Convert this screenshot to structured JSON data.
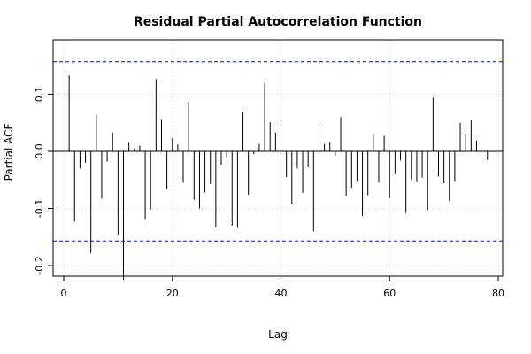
{
  "chart_data": {
    "type": "bar",
    "style": "vertical lines (spikes) from zero",
    "title": "Residual Partial Autocorrelation Function",
    "xlabel": "Lag",
    "ylabel": "Partial ACF",
    "xlim": [
      0,
      80
    ],
    "ylim": [
      -0.24,
      0.17
    ],
    "xticks": [
      0,
      20,
      40,
      60,
      80
    ],
    "xtick_labels": [
      "0",
      "20",
      "40",
      "60",
      "80"
    ],
    "yticks": [
      -0.2,
      -0.1,
      0.0,
      0.1
    ],
    "ytick_labels": [
      "-0.2",
      "-0.1",
      "0.0",
      "0.1"
    ],
    "confidence_bounds": [
      0.157,
      -0.157
    ],
    "confidence_color": "#0000ff",
    "grid": true,
    "lags": [
      1,
      2,
      3,
      4,
      5,
      6,
      7,
      8,
      9,
      10,
      11,
      12,
      13,
      14,
      15,
      16,
      17,
      18,
      19,
      20,
      21,
      22,
      23,
      24,
      25,
      26,
      27,
      28,
      29,
      30,
      31,
      32,
      33,
      34,
      35,
      36,
      37,
      38,
      39,
      40,
      41,
      42,
      43,
      44,
      45,
      46,
      47,
      48,
      49,
      50,
      51,
      52,
      53,
      54,
      55,
      56,
      57,
      58,
      59,
      60,
      61,
      62,
      63,
      64,
      65,
      66,
      67,
      68,
      69,
      70,
      71,
      72,
      73,
      74,
      75,
      76,
      77,
      78
    ],
    "values": [
      0.133,
      -0.123,
      -0.03,
      -0.02,
      -0.178,
      0.064,
      -0.083,
      -0.018,
      0.033,
      -0.146,
      -0.225,
      0.015,
      0.005,
      0.01,
      -0.12,
      -0.102,
      0.127,
      0.055,
      -0.066,
      0.023,
      0.012,
      -0.055,
      0.087,
      -0.085,
      -0.1,
      -0.072,
      -0.057,
      -0.133,
      -0.024,
      -0.01,
      -0.13,
      -0.134,
      0.068,
      -0.076,
      -0.005,
      0.013,
      0.12,
      0.051,
      0.033,
      0.053,
      -0.045,
      -0.093,
      -0.03,
      -0.073,
      -0.028,
      -0.14,
      0.048,
      0.013,
      0.016,
      -0.008,
      0.06,
      -0.078,
      -0.064,
      -0.053,
      -0.113,
      -0.077,
      0.03,
      -0.055,
      0.027,
      -0.082,
      -0.04,
      -0.016,
      -0.108,
      -0.05,
      -0.054,
      -0.046,
      -0.103,
      0.094,
      -0.044,
      -0.056,
      -0.087,
      -0.053,
      0.05,
      0.031,
      0.054,
      0.019,
      0.001,
      -0.015
    ]
  }
}
